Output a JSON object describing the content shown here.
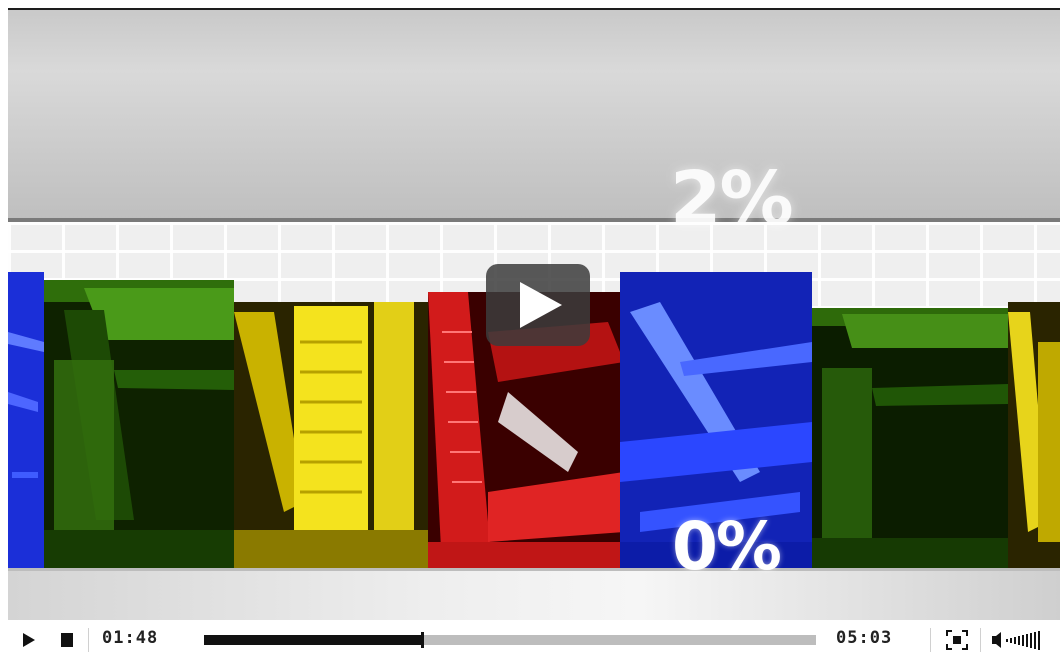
{
  "video": {
    "overlay_percent_top": "2%",
    "overlay_percent_bottom": "0%"
  },
  "controls": {
    "current_time": "01:48",
    "total_time": "05:03",
    "progress_fraction": 0.357
  },
  "icons": [
    "play-icon",
    "stop-icon",
    "fullscreen-icon",
    "volume-icon",
    "big-play-icon"
  ],
  "colors": {
    "panel_blue": "#1a34e6",
    "panel_green": "#3f8a12",
    "panel_yellow": "#f2e21c",
    "panel_red": "#d61a1a",
    "progress_fill": "#111111",
    "progress_track": "#bdbdbd"
  }
}
